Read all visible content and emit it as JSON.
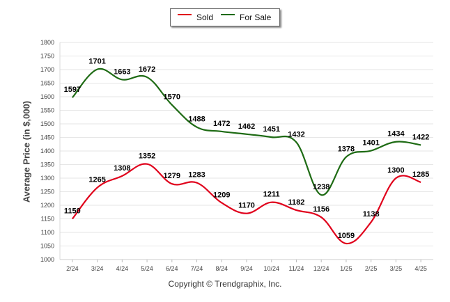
{
  "chart_data": {
    "type": "line",
    "categories": [
      "2/24",
      "3/24",
      "4/24",
      "5/24",
      "6/24",
      "7/24",
      "8/24",
      "9/24",
      "10/24",
      "11/24",
      "12/24",
      "1/25",
      "2/25",
      "3/25",
      "4/25"
    ],
    "series": [
      {
        "name": "Sold",
        "color": "#e0001b",
        "values": [
          1150,
          1265,
          1308,
          1352,
          1279,
          1283,
          1209,
          1170,
          1211,
          1182,
          1156,
          1059,
          1138,
          1300,
          1285
        ]
      },
      {
        "name": "For Sale",
        "color": "#1e6b14",
        "values": [
          1597,
          1701,
          1663,
          1672,
          1570,
          1488,
          1472,
          1462,
          1451,
          1432,
          1238,
          1378,
          1401,
          1434,
          1422
        ]
      }
    ],
    "ylabel": "Average Price (in $,000)",
    "ylim": [
      1000,
      1800
    ],
    "yticks": [
      1000,
      1050,
      1100,
      1150,
      1200,
      1250,
      1300,
      1350,
      1400,
      1450,
      1500,
      1550,
      1600,
      1650,
      1700,
      1750,
      1800
    ],
    "legend_position": "top-center",
    "grid": true
  },
  "credit": "Copyright © Trendgraphix, Inc."
}
